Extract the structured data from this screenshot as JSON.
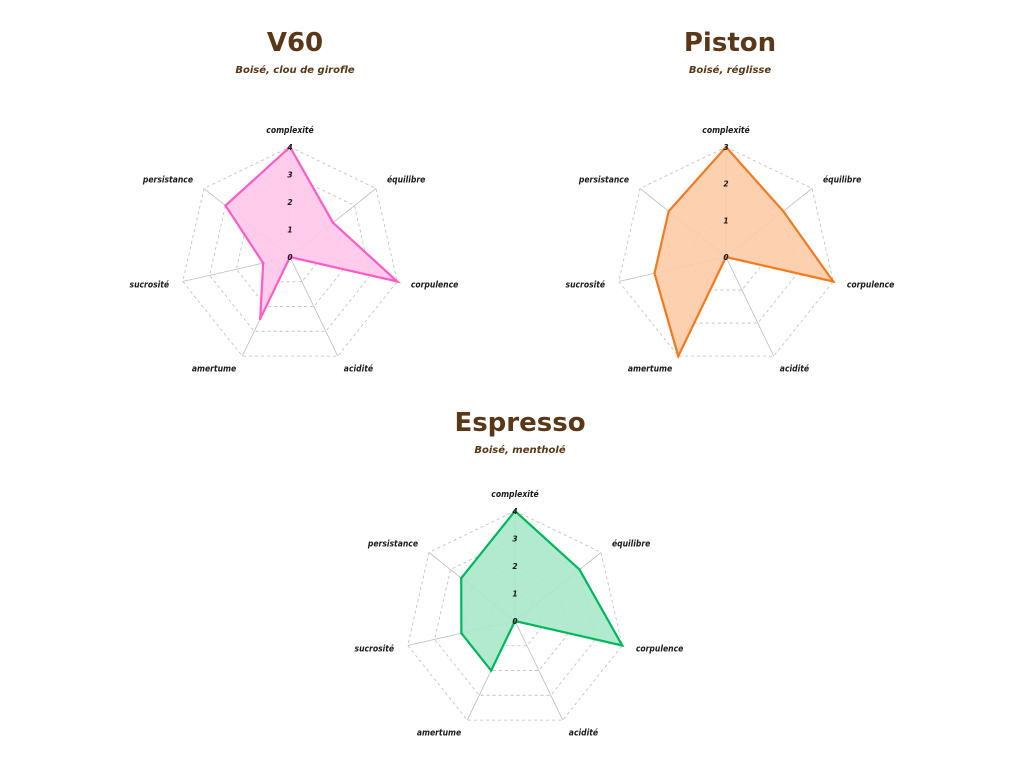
{
  "chart_data": [
    {
      "type": "radar",
      "title": "V60",
      "subtitle": "Boisé, clou de girofle",
      "axes": [
        "complexité",
        "équilibre",
        "corpulence",
        "acidité",
        "amertume",
        "sucrosité",
        "persistance"
      ],
      "values": [
        4,
        2,
        4,
        0,
        2.5,
        1,
        3
      ],
      "rmax": 4,
      "ticks": [
        0,
        1,
        2,
        3,
        4
      ],
      "grid": true,
      "color": "#ff5bc8",
      "fill": "#ffc6ea"
    },
    {
      "type": "radar",
      "title": "Piston",
      "subtitle": "Boisé, réglisse",
      "axes": [
        "complexité",
        "équilibre",
        "corpulence",
        "acidité",
        "amertume",
        "sucrosité",
        "persistance"
      ],
      "values": [
        3,
        2,
        3,
        0,
        3,
        2,
        2
      ],
      "rmax": 3,
      "ticks": [
        0,
        1,
        2,
        3
      ],
      "grid": true,
      "color": "#f47a20",
      "fill": "#fdcba6"
    },
    {
      "type": "radar",
      "title": "Espresso",
      "subtitle": "Boisé, mentholé",
      "axes": [
        "complexité",
        "équilibre",
        "corpulence",
        "acidité",
        "amertume",
        "sucrosité",
        "persistance"
      ],
      "values": [
        4,
        3,
        4,
        0,
        2,
        2,
        2.5
      ],
      "rmax": 4,
      "ticks": [
        0,
        1,
        2,
        3,
        4
      ],
      "grid": true,
      "color": "#00b85c",
      "fill": "#a8e8c9"
    }
  ]
}
